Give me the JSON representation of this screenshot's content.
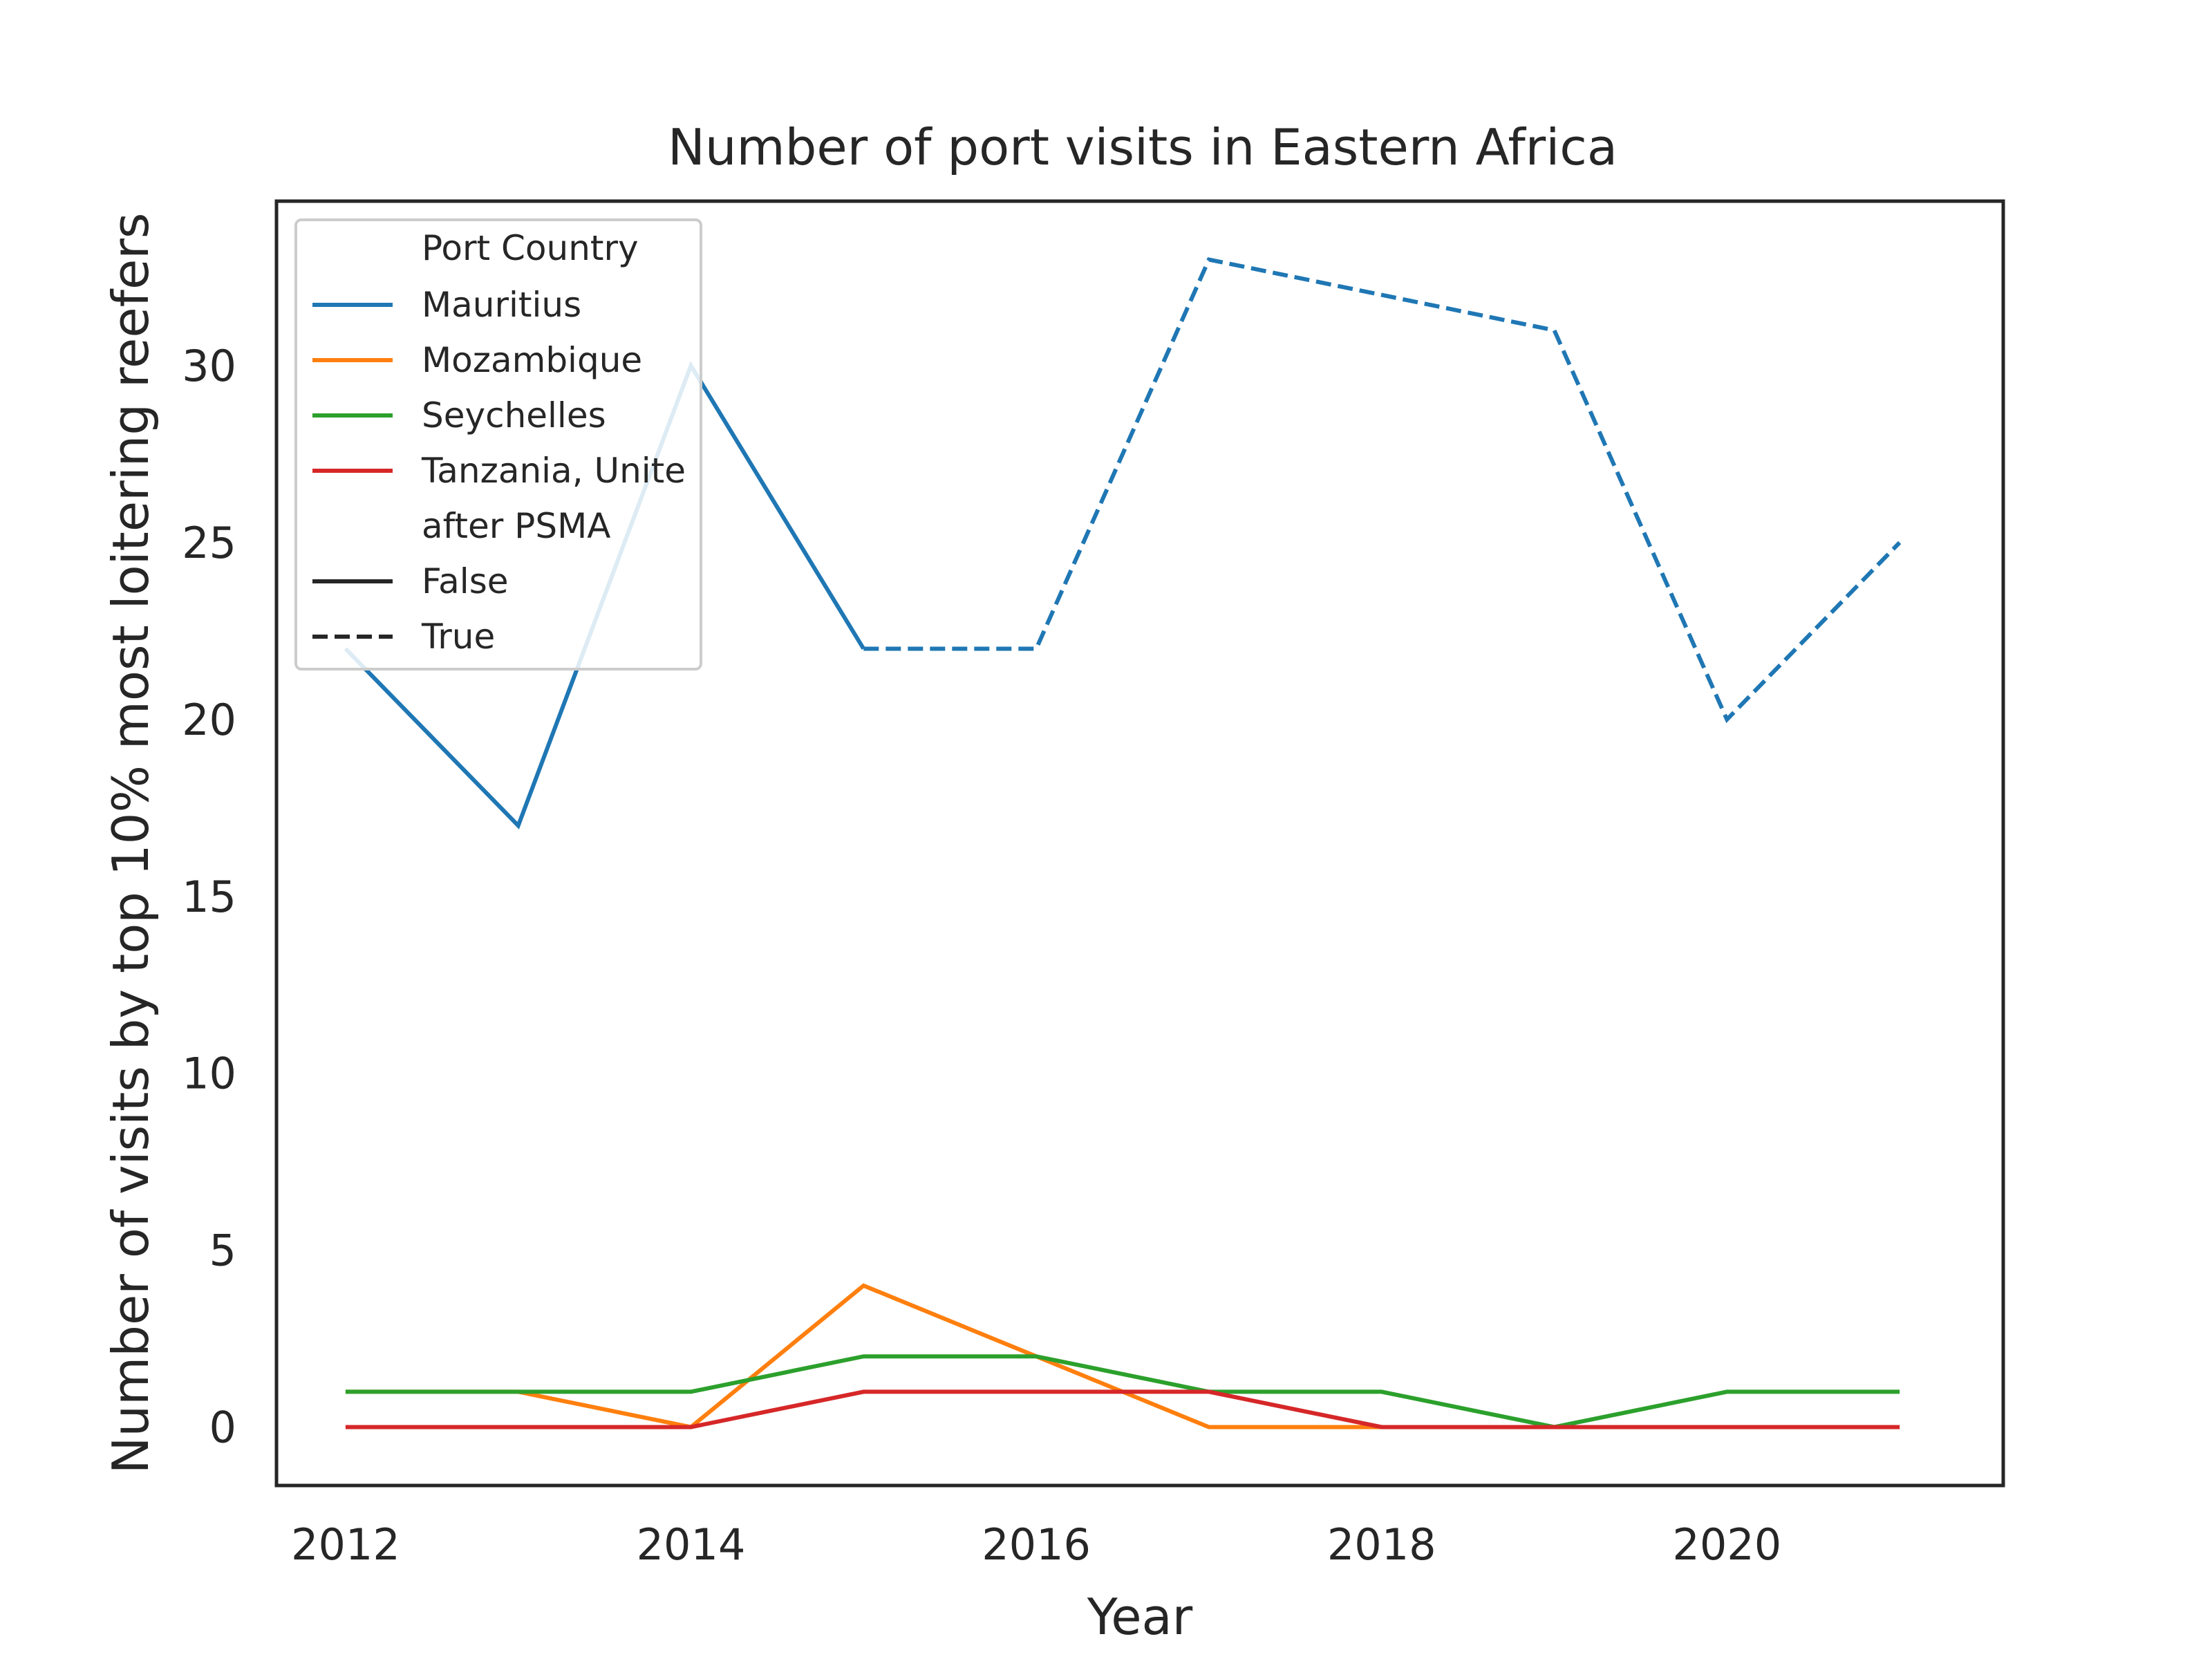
{
  "chart_data": {
    "type": "line",
    "title": "Number of port visits in Eastern Africa",
    "xlabel": "Year",
    "ylabel": "Number of visits by top 10% most loitering reefers",
    "xlim": [
      2011.6,
      2021.6
    ],
    "ylim": [
      -1.65,
      34.65
    ],
    "xticks": [
      2012,
      2014,
      2016,
      2018,
      2020
    ],
    "yticks": [
      0,
      5,
      10,
      15,
      20,
      25,
      30
    ],
    "grid": false,
    "legend": {
      "placement": "upper-left",
      "hue_title": "Port Country",
      "style_title": "after PSMA",
      "style_entries": [
        {
          "label": "False",
          "dash": "solid"
        },
        {
          "label": "True",
          "dash": "dashed"
        }
      ]
    },
    "series": [
      {
        "name": "Mauritius",
        "color": "#1f77b4",
        "segments": [
          {
            "after_psma": "False",
            "points": [
              [
                2012,
                22
              ],
              [
                2013,
                17
              ],
              [
                2014,
                30
              ],
              [
                2015,
                22
              ]
            ]
          },
          {
            "after_psma": "True",
            "points": [
              [
                2015,
                22
              ],
              [
                2016,
                22
              ],
              [
                2017,
                33
              ],
              [
                2018,
                32
              ],
              [
                2019,
                31
              ],
              [
                2020,
                20
              ],
              [
                2021,
                25
              ]
            ]
          }
        ]
      },
      {
        "name": "Mozambique",
        "color": "#ff7f0e",
        "segments": [
          {
            "after_psma": "False",
            "points": [
              [
                2012,
                1
              ],
              [
                2013,
                1
              ],
              [
                2014,
                0
              ],
              [
                2015,
                4
              ],
              [
                2016,
                2
              ],
              [
                2017,
                0
              ],
              [
                2018,
                0
              ],
              [
                2019,
                0
              ],
              [
                2020,
                0
              ],
              [
                2021,
                0
              ]
            ]
          }
        ]
      },
      {
        "name": "Seychelles",
        "color": "#2ca02c",
        "segments": [
          {
            "after_psma": "False",
            "points": [
              [
                2012,
                1
              ],
              [
                2013,
                1
              ],
              [
                2014,
                1
              ],
              [
                2015,
                2
              ],
              [
                2016,
                2
              ],
              [
                2017,
                1
              ],
              [
                2018,
                1
              ],
              [
                2019,
                0
              ],
              [
                2020,
                1
              ],
              [
                2021,
                1
              ]
            ]
          }
        ]
      },
      {
        "name": "Tanzania, Unite",
        "color": "#d62728",
        "segments": [
          {
            "after_psma": "False",
            "points": [
              [
                2012,
                0
              ],
              [
                2013,
                0
              ],
              [
                2014,
                0
              ],
              [
                2015,
                1
              ],
              [
                2016,
                1
              ],
              [
                2017,
                1
              ],
              [
                2018,
                0
              ],
              [
                2019,
                0
              ],
              [
                2020,
                0
              ],
              [
                2021,
                0
              ]
            ]
          }
        ]
      }
    ]
  }
}
